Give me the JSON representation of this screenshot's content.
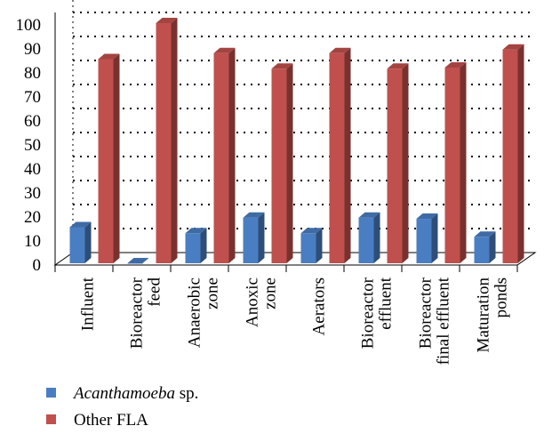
{
  "chart_data": {
    "type": "bar",
    "categories": [
      [
        "Influent"
      ],
      [
        "Bioreactor",
        "feed"
      ],
      [
        "Anaerobic",
        "zone"
      ],
      [
        "Anoxic",
        "zone"
      ],
      [
        "Aerators"
      ],
      [
        "Bioreactor",
        "effluent"
      ],
      [
        "Bioreactor",
        "final effluent"
      ],
      [
        "Maturation",
        "ponds"
      ]
    ],
    "series": [
      {
        "name_italic": "Acanthamoeba",
        "name_rest": " sp.",
        "color": "#4a7ec2",
        "values": [
          15,
          0,
          12.5,
          19,
          12.5,
          19,
          18.5,
          11
        ]
      },
      {
        "name": "Other FLA",
        "color": "#c0504d",
        "values": [
          85,
          100,
          87.5,
          81,
          87.5,
          81,
          81.5,
          89
        ]
      }
    ],
    "ylim": [
      0,
      100
    ],
    "yticks": [
      0,
      10,
      20,
      30,
      40,
      50,
      60,
      70,
      80,
      90,
      100
    ],
    "grid": true,
    "legend_position": "bottom-left"
  }
}
